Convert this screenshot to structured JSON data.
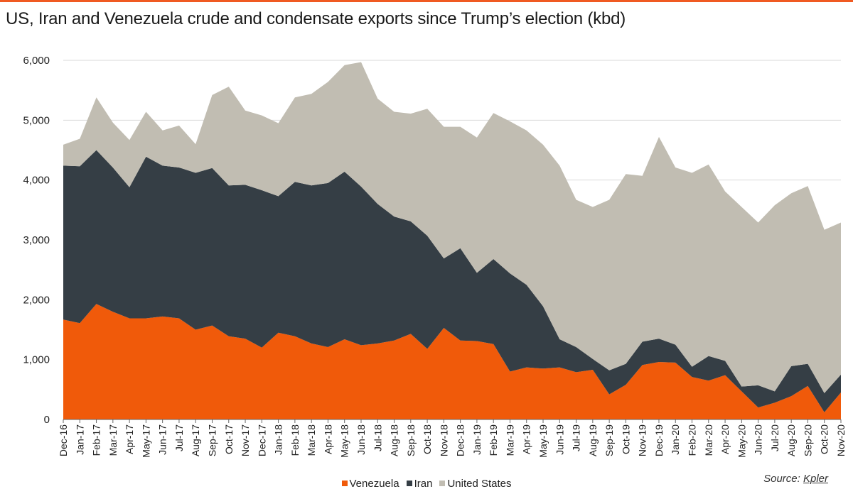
{
  "title": "US, Iran and Venezuela crude and condensate exports since Trump’s election (kbd)",
  "source": {
    "prefix": "Source: ",
    "name": "Kpler"
  },
  "colors": {
    "accent_rule": "#f05a22",
    "Venezuela": "#f05a0a",
    "Iran": "#353e45",
    "United States": "#c1bdb2"
  },
  "chart_data": {
    "type": "area",
    "stacked": true,
    "title": "US, Iran and Venezuela crude and condensate exports since Trump’s election (kbd)",
    "xlabel": "",
    "ylabel": "",
    "ylim": [
      0,
      6000
    ],
    "yticks": [
      0,
      1000,
      2000,
      3000,
      4000,
      5000,
      6000
    ],
    "ytick_labels": [
      "0",
      "1,000",
      "2,000",
      "3,000",
      "4,000",
      "5,000",
      "6,000"
    ],
    "grid": true,
    "legend_position": "bottom",
    "categories": [
      "Dec-16",
      "Jan-17",
      "Feb-17",
      "Mar-17",
      "Apr-17",
      "May-17",
      "Jun-17",
      "Jul-17",
      "Aug-17",
      "Sep-17",
      "Oct-17",
      "Nov-17",
      "Dec-17",
      "Jan-18",
      "Feb-18",
      "Mar-18",
      "Apr-18",
      "May-18",
      "Jun-18",
      "Jul-18",
      "Aug-18",
      "Sep-18",
      "Oct-18",
      "Nov-18",
      "Dec-18",
      "Jan-19",
      "Feb-19",
      "Mar-19",
      "Apr-19",
      "May-19",
      "Jun-19",
      "Jul-19",
      "Aug-19",
      "Sep-19",
      "Oct-19",
      "Nov-19",
      "Dec-19",
      "Jan-20",
      "Feb-20",
      "Mar-20",
      "Apr-20",
      "May-20",
      "Jun-20",
      "Jul-20",
      "Aug-20",
      "Sep-20",
      "Oct-20",
      "Nov-20"
    ],
    "series": [
      {
        "name": "Venezuela",
        "values": [
          1670,
          1610,
          1930,
          1800,
          1690,
          1690,
          1720,
          1690,
          1500,
          1570,
          1390,
          1350,
          1200,
          1450,
          1390,
          1270,
          1210,
          1340,
          1240,
          1270,
          1320,
          1430,
          1180,
          1530,
          1320,
          1310,
          1260,
          800,
          870,
          850,
          870,
          790,
          830,
          420,
          580,
          910,
          960,
          950,
          710,
          650,
          740,
          470,
          200,
          280,
          390,
          560,
          120,
          450
        ]
      },
      {
        "name": "Iran",
        "values": [
          2570,
          2620,
          2570,
          2410,
          2190,
          2700,
          2520,
          2520,
          2620,
          2630,
          2520,
          2570,
          2630,
          2280,
          2580,
          2640,
          2740,
          2800,
          2650,
          2330,
          2070,
          1880,
          1890,
          1160,
          1540,
          1140,
          1420,
          1640,
          1380,
          1040,
          470,
          420,
          180,
          400,
          350,
          390,
          390,
          300,
          170,
          410,
          240,
          80,
          370,
          190,
          500,
          370,
          320,
          300
        ]
      },
      {
        "name": "United States",
        "values": [
          350,
          460,
          880,
          750,
          790,
          750,
          590,
          700,
          480,
          1220,
          1650,
          1240,
          1250,
          1220,
          1410,
          1530,
          1690,
          1780,
          2080,
          1760,
          1750,
          1800,
          2120,
          2200,
          2030,
          2260,
          2440,
          2540,
          2580,
          2700,
          2900,
          2460,
          2540,
          2850,
          3170,
          2770,
          3370,
          2960,
          3240,
          3200,
          2830,
          3000,
          2720,
          3110,
          2890,
          2970,
          2730,
          2540
        ]
      }
    ]
  }
}
